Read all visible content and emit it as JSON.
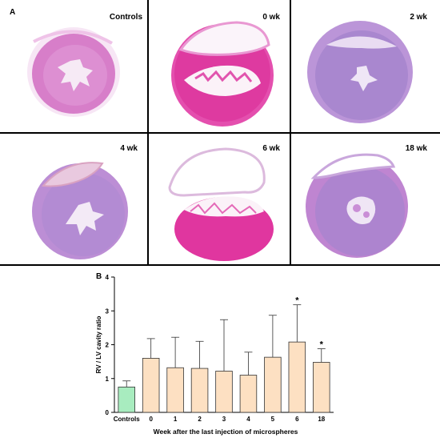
{
  "panels": {
    "a_label": "A",
    "b_label": "B"
  },
  "tiles": [
    {
      "label": "Controls"
    },
    {
      "label": "0 wk"
    },
    {
      "label": "2 wk"
    },
    {
      "label": "4 wk"
    },
    {
      "label": "6 wk"
    },
    {
      "label": "18 wk"
    }
  ],
  "colors": {
    "stain_pink": "#d86fc6",
    "stain_magenta": "#e0379f",
    "stain_violet": "#a884cf",
    "control_bar": "#a8ecbf",
    "group_bar": "#fde0c2"
  },
  "chart_data": {
    "type": "bar",
    "categories": [
      "Controls",
      "0",
      "1",
      "2",
      "3",
      "4",
      "5",
      "6",
      "18"
    ],
    "values": [
      0.75,
      1.6,
      1.32,
      1.3,
      1.22,
      1.1,
      1.63,
      2.08,
      1.48
    ],
    "errors": [
      0.18,
      0.58,
      0.9,
      0.8,
      1.52,
      0.68,
      1.24,
      1.1,
      0.4
    ],
    "significance": [
      "",
      "",
      "",
      "",
      "",
      "",
      "",
      "*",
      "*"
    ],
    "xlabel": "Week after the last injection of microspheres",
    "ylabel": "RV / LV cavity ratio",
    "ylim": [
      0,
      4
    ],
    "yticks": [
      "0",
      "1",
      "2",
      "3",
      "4"
    ],
    "grid": false
  }
}
